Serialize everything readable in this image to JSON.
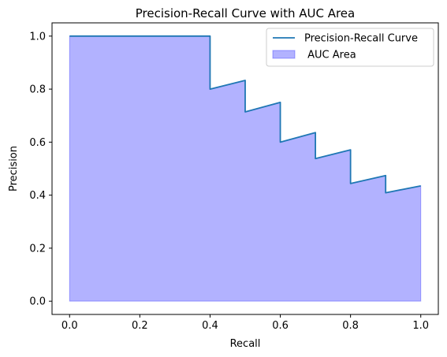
{
  "chart_data": {
    "type": "line",
    "title": "Precision-Recall Curve with AUC Area",
    "xlabel": "Recall",
    "ylabel": "Precision",
    "xlim": [
      -0.05,
      1.05
    ],
    "ylim": [
      -0.05,
      1.05
    ],
    "xticks": [
      0.0,
      0.2,
      0.4,
      0.6,
      0.8,
      1.0
    ],
    "xtick_labels": [
      "0.0",
      "0.2",
      "0.4",
      "0.6",
      "0.8",
      "1.0"
    ],
    "yticks": [
      0.0,
      0.2,
      0.4,
      0.6,
      0.8,
      1.0
    ],
    "ytick_labels": [
      "0.0",
      "0.2",
      "0.4",
      "0.6",
      "0.8",
      "1.0"
    ],
    "grid": false,
    "legend_position": "upper-right",
    "series": [
      {
        "name": "Precision-Recall Curve",
        "kind": "step-line",
        "color": "#1f77b4",
        "x": [
          0.0,
          0.4,
          0.4,
          0.5,
          0.5,
          0.6,
          0.6,
          0.7,
          0.7,
          0.8,
          0.8,
          0.9,
          0.9,
          1.0
        ],
        "y": [
          1.0,
          1.0,
          0.8,
          0.833,
          0.714,
          0.75,
          0.6,
          0.636,
          0.538,
          0.571,
          0.444,
          0.474,
          0.409,
          0.435
        ]
      },
      {
        "name": " AUC Area",
        "kind": "area",
        "color": "#0000ff",
        "opacity": 0.3,
        "x": [
          0.0,
          0.4,
          0.4,
          0.5,
          0.5,
          0.6,
          0.6,
          0.7,
          0.7,
          0.8,
          0.8,
          0.9,
          0.9,
          1.0
        ],
        "y": [
          1.0,
          1.0,
          0.8,
          0.833,
          0.714,
          0.75,
          0.6,
          0.636,
          0.538,
          0.571,
          0.444,
          0.474,
          0.409,
          0.435
        ]
      }
    ]
  }
}
